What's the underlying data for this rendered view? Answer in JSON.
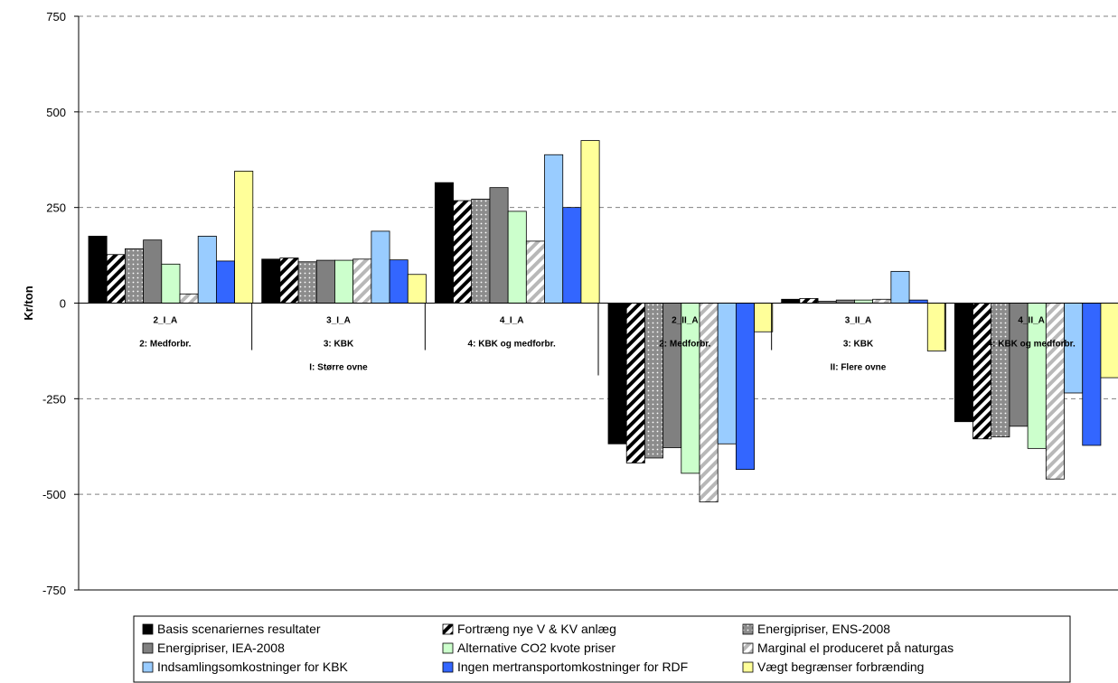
{
  "chart_data": {
    "type": "bar",
    "ylabel": "Kr/ton",
    "ylim": [
      -750,
      750
    ],
    "yticks": [
      750,
      500,
      250,
      0,
      -250,
      -500,
      -750
    ],
    "grid": true,
    "categories": [
      "2_I_A",
      "3_I_A",
      "4_I_A",
      "2_II_A",
      "3_II_A",
      "4_II_A"
    ],
    "category_groups": [
      {
        "label": "2: Medforbr.",
        "span": [
          0,
          0
        ]
      },
      {
        "label": "3: KBK",
        "span": [
          1,
          1
        ]
      },
      {
        "label": "4: KBK og medforbr.",
        "span": [
          2,
          2
        ]
      },
      {
        "label": "2: Medforbr.",
        "span": [
          3,
          3
        ]
      },
      {
        "label": "3: KBK",
        "span": [
          4,
          4
        ]
      },
      {
        "label": "4: KBK og medforbr.",
        "span": [
          5,
          5
        ]
      }
    ],
    "super_groups": [
      {
        "label": "I: Større ovne",
        "span": [
          0,
          2
        ]
      },
      {
        "label": "II: Flere ovne",
        "span": [
          3,
          5
        ]
      }
    ],
    "legend_position": "bottom",
    "series": [
      {
        "name": "Basis scenariernes resultater",
        "color": "#000000",
        "pattern": "solid",
        "values": [
          175,
          115,
          315,
          -368,
          10,
          -310
        ]
      },
      {
        "name": "Fortræng nye V & KV anlæg",
        "color": "#000000",
        "pattern": "diag-black",
        "values": [
          127,
          118,
          268,
          -418,
          12,
          -355
        ]
      },
      {
        "name": "Energipriser, ENS-2008",
        "color": "#999999",
        "pattern": "dots",
        "values": [
          142,
          108,
          272,
          -405,
          5,
          -350
        ]
      },
      {
        "name": "Energipriser, IEA-2008",
        "color": "#808080",
        "pattern": "solid",
        "values": [
          165,
          112,
          302,
          -378,
          8,
          -322
        ]
      },
      {
        "name": "Alternative CO2 kvote priser",
        "color": "#ccffcc",
        "pattern": "solid",
        "values": [
          102,
          112,
          240,
          -445,
          8,
          -380
        ]
      },
      {
        "name": "Marginal el produceret på naturgas",
        "color": "#ffffff",
        "pattern": "diag-gray",
        "values": [
          24,
          115,
          162,
          -520,
          10,
          -460
        ]
      },
      {
        "name": "Indsamlingsomkostninger for KBK",
        "color": "#99ccff",
        "pattern": "solid",
        "values": [
          175,
          188,
          388,
          -368,
          83,
          -235
        ]
      },
      {
        "name": "Ingen mertransportomkostninger for RDF",
        "color": "#3366ff",
        "pattern": "solid",
        "values": [
          110,
          113,
          250,
          -435,
          8,
          -372
        ]
      },
      {
        "name": "Vægt begrænser forbrænding",
        "color": "#ffff99",
        "pattern": "solid",
        "values": [
          345,
          75,
          425,
          -75,
          -125,
          -195
        ]
      }
    ]
  }
}
